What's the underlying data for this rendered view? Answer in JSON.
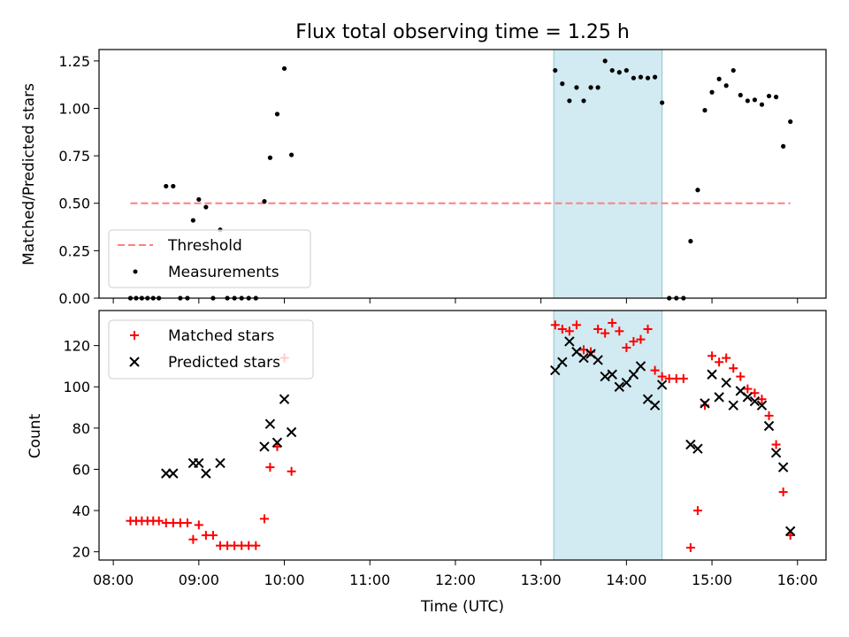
{
  "figure": {
    "title": "Flux total observing time = 1.25 h",
    "xlabel": "Time (UTC)",
    "highlight": {
      "start": "13:09",
      "end": "14:25",
      "color": "#add8e6"
    }
  },
  "chart_data": [
    {
      "type": "scatter",
      "ylabel": "Matched/Predicted stars",
      "xlim": [
        "07:50",
        "16:20"
      ],
      "ylim": [
        0,
        1.31
      ],
      "yticks": [
        "0.00",
        "0.25",
        "0.50",
        "0.75",
        "1.00",
        "1.25"
      ],
      "legend": {
        "position": "bottom-left",
        "entries": [
          {
            "label": "Threshold",
            "style": "dashed-line",
            "color": "#ff7f7f"
          },
          {
            "label": "Measurements",
            "style": "dot",
            "color": "#000000"
          }
        ]
      },
      "threshold": {
        "y": 0.5,
        "x_start": "08:12",
        "x_end": "15:55",
        "color": "#ff7f7f"
      },
      "series": [
        {
          "name": "Measurements",
          "color": "#000000",
          "points": [
            [
              "08:12",
              0
            ],
            [
              "08:16",
              0
            ],
            [
              "08:20",
              0
            ],
            [
              "08:24",
              0
            ],
            [
              "08:28",
              0
            ],
            [
              "08:32",
              0
            ],
            [
              "08:37",
              0.59
            ],
            [
              "08:42",
              0.59
            ],
            [
              "08:47",
              0
            ],
            [
              "08:52",
              0
            ],
            [
              "08:56",
              0.41
            ],
            [
              "09:00",
              0.52
            ],
            [
              "09:05",
              0.48
            ],
            [
              "09:10",
              0
            ],
            [
              "09:15",
              0.36
            ],
            [
              "09:20",
              0
            ],
            [
              "09:25",
              0
            ],
            [
              "09:30",
              0
            ],
            [
              "09:35",
              0
            ],
            [
              "09:40",
              0
            ],
            [
              "09:46",
              0.51
            ],
            [
              "09:50",
              0.74
            ],
            [
              "09:55",
              0.97
            ],
            [
              "10:00",
              1.21
            ],
            [
              "10:05",
              0.755
            ],
            [
              "13:10",
              1.2
            ],
            [
              "13:15",
              1.13
            ],
            [
              "13:20",
              1.04
            ],
            [
              "13:25",
              1.11
            ],
            [
              "13:30",
              1.04
            ],
            [
              "13:35",
              1.11
            ],
            [
              "13:40",
              1.11
            ],
            [
              "13:45",
              1.25
            ],
            [
              "13:50",
              1.2
            ],
            [
              "13:55",
              1.19
            ],
            [
              "14:00",
              1.2
            ],
            [
              "14:05",
              1.16
            ],
            [
              "14:10",
              1.165
            ],
            [
              "14:15",
              1.16
            ],
            [
              "14:20",
              1.165
            ],
            [
              "14:25",
              1.03
            ],
            [
              "14:30",
              0
            ],
            [
              "14:35",
              0
            ],
            [
              "14:40",
              0
            ],
            [
              "14:45",
              0.3
            ],
            [
              "14:50",
              0.57
            ],
            [
              "14:55",
              0.99
            ],
            [
              "15:00",
              1.085
            ],
            [
              "15:05",
              1.155
            ],
            [
              "15:10",
              1.12
            ],
            [
              "15:15",
              1.2
            ],
            [
              "15:20",
              1.07
            ],
            [
              "15:25",
              1.04
            ],
            [
              "15:30",
              1.045
            ],
            [
              "15:35",
              1.02
            ],
            [
              "15:40",
              1.065
            ],
            [
              "15:45",
              1.06
            ],
            [
              "15:50",
              0.8
            ],
            [
              "15:55",
              0.93
            ]
          ]
        }
      ]
    },
    {
      "type": "scatter",
      "ylabel": "Count",
      "xlim": [
        "07:50",
        "16:20"
      ],
      "ylim": [
        16,
        137
      ],
      "yticks": [
        "20",
        "40",
        "60",
        "80",
        "100",
        "120"
      ],
      "xticks": [
        "08:00",
        "09:00",
        "10:00",
        "11:00",
        "12:00",
        "13:00",
        "14:00",
        "15:00",
        "16:00"
      ],
      "legend": {
        "position": "top-left",
        "entries": [
          {
            "label": "Matched stars",
            "style": "plus",
            "color": "#ff0000"
          },
          {
            "label": "Predicted stars",
            "style": "x",
            "color": "#000000"
          }
        ]
      },
      "series": [
        {
          "name": "Matched stars",
          "color": "#ff0000",
          "points": [
            [
              "08:12",
              35
            ],
            [
              "08:16",
              35
            ],
            [
              "08:20",
              35
            ],
            [
              "08:24",
              35
            ],
            [
              "08:28",
              35
            ],
            [
              "08:32",
              35
            ],
            [
              "08:37",
              34
            ],
            [
              "08:42",
              34
            ],
            [
              "08:47",
              34
            ],
            [
              "08:52",
              34
            ],
            [
              "08:56",
              26
            ],
            [
              "09:00",
              33
            ],
            [
              "09:05",
              28
            ],
            [
              "09:10",
              28
            ],
            [
              "09:15",
              23
            ],
            [
              "09:20",
              23
            ],
            [
              "09:25",
              23
            ],
            [
              "09:30",
              23
            ],
            [
              "09:35",
              23
            ],
            [
              "09:40",
              23
            ],
            [
              "09:46",
              36
            ],
            [
              "09:50",
              61
            ],
            [
              "09:55",
              71
            ],
            [
              "10:00",
              114
            ],
            [
              "10:05",
              59
            ],
            [
              "13:10",
              130
            ],
            [
              "13:15",
              128
            ],
            [
              "13:20",
              127
            ],
            [
              "13:25",
              130
            ],
            [
              "13:30",
              118
            ],
            [
              "13:35",
              117
            ],
            [
              "13:40",
              128
            ],
            [
              "13:45",
              126
            ],
            [
              "13:50",
              131
            ],
            [
              "13:55",
              127
            ],
            [
              "14:00",
              119
            ],
            [
              "14:05",
              122
            ],
            [
              "14:10",
              123
            ],
            [
              "14:15",
              128
            ],
            [
              "14:20",
              108
            ],
            [
              "14:25",
              105
            ],
            [
              "14:30",
              104
            ],
            [
              "14:35",
              104
            ],
            [
              "14:40",
              104
            ],
            [
              "14:45",
              22
            ],
            [
              "14:50",
              40
            ],
            [
              "14:55",
              91
            ],
            [
              "15:00",
              115
            ],
            [
              "15:05",
              112
            ],
            [
              "15:10",
              114
            ],
            [
              "15:15",
              109
            ],
            [
              "15:20",
              105
            ],
            [
              "15:25",
              99
            ],
            [
              "15:30",
              97
            ],
            [
              "15:35",
              94
            ],
            [
              "15:40",
              86
            ],
            [
              "15:45",
              72
            ],
            [
              "15:50",
              49
            ],
            [
              "15:55",
              28
            ]
          ]
        },
        {
          "name": "Predicted stars",
          "color": "#000000",
          "points": [
            [
              "08:37",
              58
            ],
            [
              "08:42",
              58
            ],
            [
              "08:56",
              63
            ],
            [
              "09:00",
              63
            ],
            [
              "09:05",
              58
            ],
            [
              "09:15",
              63
            ],
            [
              "09:46",
              71
            ],
            [
              "09:50",
              82
            ],
            [
              "09:55",
              73
            ],
            [
              "10:00",
              94
            ],
            [
              "10:05",
              78
            ],
            [
              "13:10",
              108
            ],
            [
              "13:15",
              112
            ],
            [
              "13:20",
              122
            ],
            [
              "13:25",
              117
            ],
            [
              "13:30",
              114
            ],
            [
              "13:35",
              116
            ],
            [
              "13:40",
              113
            ],
            [
              "13:45",
              105
            ],
            [
              "13:50",
              106
            ],
            [
              "13:55",
              100
            ],
            [
              "14:00",
              102
            ],
            [
              "14:05",
              106
            ],
            [
              "14:10",
              110
            ],
            [
              "14:15",
              94
            ],
            [
              "14:20",
              91
            ],
            [
              "14:25",
              101
            ],
            [
              "14:45",
              72
            ],
            [
              "14:50",
              70
            ],
            [
              "14:55",
              92
            ],
            [
              "15:00",
              106
            ],
            [
              "15:05",
              95
            ],
            [
              "15:10",
              102
            ],
            [
              "15:15",
              91
            ],
            [
              "15:20",
              98
            ],
            [
              "15:25",
              95
            ],
            [
              "15:30",
              93
            ],
            [
              "15:35",
              91
            ],
            [
              "15:40",
              81
            ],
            [
              "15:45",
              68
            ],
            [
              "15:50",
              61
            ],
            [
              "15:55",
              30
            ]
          ]
        }
      ]
    }
  ]
}
